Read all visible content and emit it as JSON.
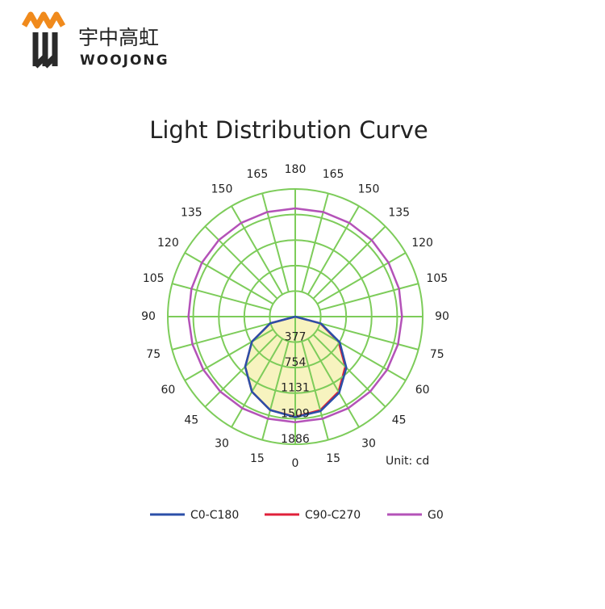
{
  "brand": {
    "name_cn": "宇中高虹",
    "name_en": "WOOJONG"
  },
  "chart_data": {
    "type": "polar",
    "title": "Light Distribution Curve",
    "unit_label": "Unit: cd",
    "x": [
      -180,
      -165,
      -150,
      -135,
      -120,
      -105,
      -90,
      -75,
      -60,
      -45,
      -30,
      -15,
      0,
      15,
      30,
      45,
      60,
      75,
      90,
      105,
      120,
      135,
      150,
      165,
      180
    ],
    "rlim": [
      0,
      1886
    ],
    "rticks": [
      377,
      754,
      1131,
      1509,
      1886
    ],
    "thetaticks": [
      0,
      15,
      30,
      45,
      60,
      75,
      90,
      105,
      120,
      135,
      150,
      165,
      180,
      {
        "value": -15,
        "label": "15"
      },
      {
        "value": -30,
        "label": "30"
      },
      {
        "value": -45,
        "label": "45"
      },
      {
        "value": -60,
        "label": "60"
      },
      {
        "value": -75,
        "label": "75"
      },
      {
        "value": -90,
        "label": "90"
      },
      {
        "value": -105,
        "label": "105"
      },
      {
        "value": -120,
        "label": "120"
      },
      {
        "value": -135,
        "label": "135"
      },
      {
        "value": -150,
        "label": "150"
      },
      {
        "value": -165,
        "label": "165"
      }
    ],
    "grid": true,
    "series": [
      {
        "name": "C0-C180",
        "color": "#2b4fa8",
        "values": [
          0,
          0,
          0,
          0,
          0,
          0,
          0,
          383,
          740,
          1047,
          1282,
          1430,
          1485,
          1445,
          1300,
          1070,
          760,
          395,
          0,
          0,
          0,
          0,
          0,
          0,
          0
        ]
      },
      {
        "name": "C90-C270",
        "color": "#e0203a",
        "fill": "#f6f1b4",
        "values": [
          0,
          0,
          0,
          0,
          0,
          0,
          0,
          383,
          740,
          1047,
          1282,
          1430,
          1480,
          1430,
          1282,
          1047,
          740,
          383,
          0,
          0,
          0,
          0,
          0,
          0,
          0
        ]
      },
      {
        "name": "G0",
        "color": "#b452b8",
        "values": [
          1600,
          1600,
          1600,
          1600,
          1595,
          1590,
          1580,
          1575,
          1570,
          1568,
          1565,
          1562,
          1560,
          1562,
          1565,
          1568,
          1570,
          1575,
          1580,
          1590,
          1595,
          1600,
          1600,
          1600,
          1600
        ]
      }
    ]
  }
}
